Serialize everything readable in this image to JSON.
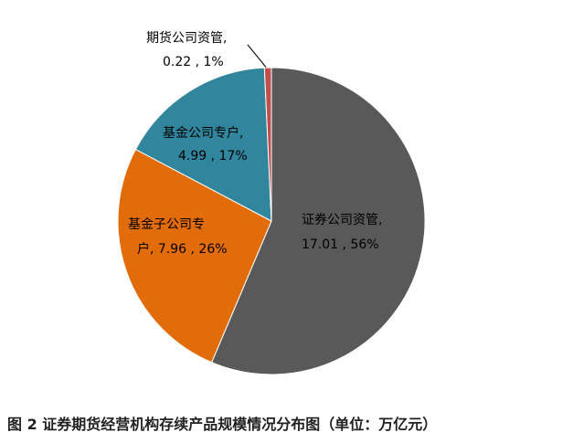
{
  "chart_data": {
    "type": "pie",
    "title": "图 2  证券期货经营机构存续产品规模情况分布图（单位：万亿元）",
    "values": [
      17.01,
      7.96,
      4.99,
      0.22
    ],
    "value_labels": [
      [
        "证券公司资管,",
        "17.01 , 56%"
      ],
      [
        "基金子公司专",
        "户, 7.96 , 26%"
      ],
      [
        "基金公司专户,",
        "4.99 , 17%"
      ],
      [
        "期货公司资管,",
        "0.22 , 1%"
      ]
    ],
    "colors": [
      "#595959",
      "#e36c0a",
      "#31859c",
      "#c0504d"
    ]
  }
}
